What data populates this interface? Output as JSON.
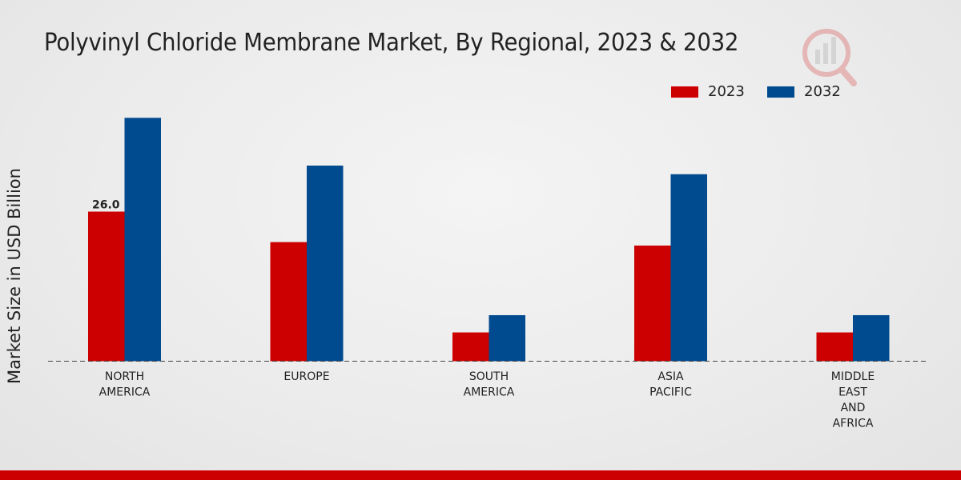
{
  "chart_data": {
    "type": "bar",
    "title": "Polyvinyl Chloride Membrane Market, By Regional, 2023 & 2032",
    "xlabel": "",
    "ylabel": "Market Size in USD Billion",
    "categories": [
      "NORTH\nAMERICA",
      "EUROPE",
      "SOUTH\nAMERICA",
      "ASIA\nPACIFIC",
      "MIDDLE\nEAST\nAND\nAFRICA"
    ],
    "series": [
      {
        "name": "2023",
        "color": "#cc0000",
        "values": [
          26.0,
          20.7,
          5.0,
          20.1,
          5.0
        ]
      },
      {
        "name": "2032",
        "color": "#004a8f",
        "values": [
          42.3,
          34.0,
          8.0,
          32.5,
          8.0
        ]
      }
    ],
    "data_labels": [
      {
        "series": 0,
        "index": 0,
        "text": "26.0"
      }
    ],
    "ylim": [
      0,
      60
    ],
    "grid": false,
    "legend_position": "top-right"
  }
}
